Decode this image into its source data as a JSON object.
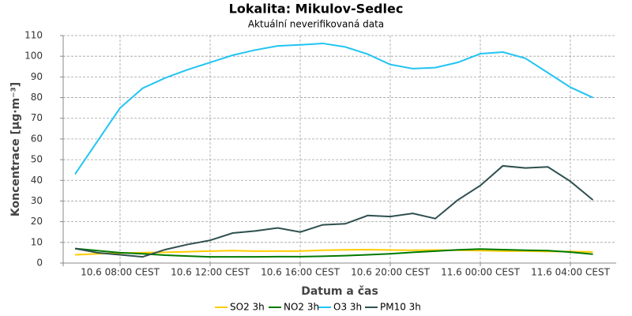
{
  "chart_data": {
    "type": "line",
    "title": "Lokalita: Mikulov-Sedlec",
    "subtitle": "Aktuální neverifikovaná data",
    "x_label": "Datum a čas",
    "y_label": "Koncentrace [µg·m⁻³]",
    "categories": [
      null,
      null,
      "10.6 08:00 CEST",
      null,
      null,
      null,
      "10.6 12:00 CEST",
      null,
      null,
      null,
      "10.6 16:00 CEST",
      null,
      null,
      null,
      "10.6 20:00 CEST",
      null,
      null,
      null,
      "11.6 00:00 CEST",
      null,
      null,
      null,
      "11.6 04:00 CEST",
      null
    ],
    "ylim": [
      0,
      110
    ],
    "yticks": [
      0,
      10,
      20,
      30,
      40,
      50,
      60,
      70,
      80,
      90,
      100,
      110
    ],
    "grid": true,
    "legend": "bottom",
    "series": [
      {
        "name": "SO2 3h",
        "color": "#ffcc00",
        "values": [
          4,
          4.5,
          4.8,
          5,
          5.2,
          5.5,
          5.8,
          6,
          5.8,
          5.8,
          5.8,
          6.2,
          6.4,
          6.5,
          6.3,
          6.2,
          6.3,
          6.2,
          6,
          5.8,
          5.8,
          5.6,
          5.6,
          5.4
        ]
      },
      {
        "name": "NO2 3h",
        "color": "#007a00",
        "values": [
          7,
          6,
          5,
          4.5,
          3.8,
          3.4,
          3,
          3,
          3,
          3.1,
          3.1,
          3.3,
          3.6,
          4,
          4.5,
          5.2,
          5.8,
          6.4,
          6.8,
          6.5,
          6.2,
          6,
          5.3,
          4.3
        ]
      },
      {
        "name": "O3 3h",
        "color": "#22c4f2",
        "values": [
          43,
          59,
          75,
          84.5,
          89.5,
          93.5,
          97,
          100.5,
          103,
          105,
          105.5,
          106.2,
          104.5,
          101,
          96,
          94,
          94.5,
          97,
          101.2,
          102,
          99,
          92,
          85,
          80
        ]
      },
      {
        "name": "PM10 3h",
        "color": "#2f4f4f",
        "values": [
          7,
          5,
          4,
          3,
          6.5,
          9,
          11,
          14.5,
          15.5,
          17,
          15,
          18.5,
          19,
          23,
          22.5,
          24,
          21.5,
          30.5,
          37.5,
          47,
          46,
          46.5,
          39.5,
          30.5
        ]
      }
    ]
  }
}
